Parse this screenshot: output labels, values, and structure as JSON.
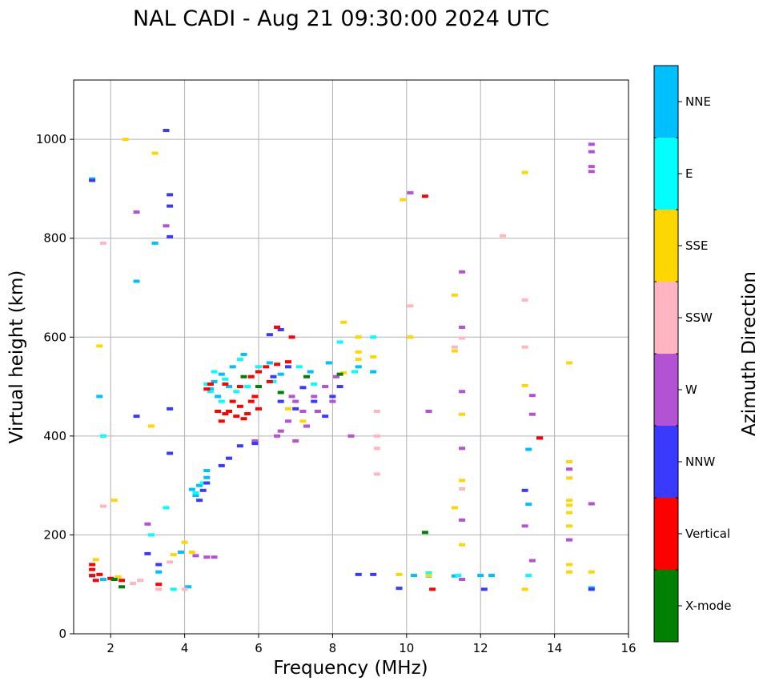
{
  "chart_data": {
    "type": "scatter",
    "title": "NAL CADI - Aug 21 09:30:00 2024 UTC",
    "xlabel": "Frequency (MHz)",
    "ylabel": "Virtual height (km)",
    "xlim": [
      1,
      16
    ],
    "ylim": [
      0,
      1120
    ],
    "xticks": [
      2,
      4,
      6,
      8,
      10,
      12,
      14,
      16
    ],
    "yticks": [
      0,
      200,
      400,
      600,
      800,
      1000
    ],
    "grid": true,
    "colorbar": {
      "label": "Azimuth Direction",
      "categories": [
        {
          "name": "NNE",
          "color": "#00bfff"
        },
        {
          "name": "E",
          "color": "#00ffff"
        },
        {
          "name": "SSE",
          "color": "#ffd700"
        },
        {
          "name": "SSW",
          "color": "#ffb6c1"
        },
        {
          "name": "W",
          "color": "#b452d4"
        },
        {
          "name": "NNW",
          "color": "#3a3aff"
        },
        {
          "name": "Vertical",
          "color": "#ff0000"
        },
        {
          "name": "X-mode",
          "color": "#008000"
        }
      ]
    },
    "series": [
      {
        "name": "NNE",
        "points": [
          [
            1.5,
            920
          ],
          [
            3.2,
            790
          ],
          [
            2.7,
            713
          ],
          [
            1.7,
            480
          ],
          [
            1.5,
            117
          ],
          [
            1.8,
            110
          ],
          [
            4.6,
            316
          ],
          [
            4.4,
            300
          ],
          [
            4.2,
            292
          ],
          [
            4.3,
            280
          ],
          [
            4.6,
            330
          ],
          [
            4.8,
            510
          ],
          [
            4.7,
            495
          ],
          [
            5.0,
            525
          ],
          [
            5.3,
            540
          ],
          [
            5.6,
            565
          ],
          [
            5.2,
            500
          ],
          [
            4.9,
            480
          ],
          [
            6.3,
            548
          ],
          [
            6.6,
            525
          ],
          [
            7.4,
            530
          ],
          [
            7.9,
            548
          ],
          [
            8.7,
            540
          ],
          [
            9.1,
            530
          ],
          [
            10.2,
            118
          ],
          [
            10.6,
            117
          ],
          [
            11.3,
            117
          ],
          [
            12.0,
            118
          ],
          [
            12.3,
            118
          ],
          [
            13.3,
            373
          ],
          [
            13.3,
            262
          ],
          [
            15.0,
            93
          ],
          [
            4.1,
            95
          ],
          [
            3.9,
            165
          ],
          [
            3.3,
            125
          ]
        ]
      },
      {
        "name": "E",
        "points": [
          [
            4.8,
            530
          ],
          [
            5.1,
            515
          ],
          [
            5.4,
            490
          ],
          [
            4.6,
            505
          ],
          [
            5.0,
            470
          ],
          [
            5.7,
            500
          ],
          [
            6.0,
            540
          ],
          [
            6.4,
            510
          ],
          [
            7.1,
            540
          ],
          [
            7.5,
            505
          ],
          [
            8.2,
            590
          ],
          [
            8.6,
            530
          ],
          [
            9.1,
            600
          ],
          [
            4.5,
            305
          ],
          [
            4.3,
            285
          ],
          [
            3.5,
            255
          ],
          [
            3.1,
            200
          ],
          [
            1.8,
            400
          ],
          [
            3.7,
            90
          ],
          [
            10.6,
            123
          ],
          [
            11.4,
            118
          ],
          [
            13.3,
            118
          ],
          [
            5.5,
            555
          ],
          [
            4.7,
            490
          ]
        ]
      },
      {
        "name": "SSE",
        "points": [
          [
            2.4,
            1000
          ],
          [
            3.2,
            972
          ],
          [
            3.1,
            420
          ],
          [
            1.7,
            582
          ],
          [
            2.1,
            270
          ],
          [
            1.6,
            150
          ],
          [
            2.2,
            115
          ],
          [
            3.7,
            160
          ],
          [
            4.0,
            185
          ],
          [
            4.2,
            165
          ],
          [
            8.3,
            630
          ],
          [
            8.7,
            600
          ],
          [
            8.7,
            570
          ],
          [
            8.7,
            555
          ],
          [
            9.1,
            560
          ],
          [
            9.9,
            878
          ],
          [
            10.1,
            600
          ],
          [
            11.3,
            685
          ],
          [
            11.3,
            572
          ],
          [
            11.5,
            444
          ],
          [
            11.5,
            310
          ],
          [
            11.3,
            255
          ],
          [
            11.5,
            180
          ],
          [
            13.2,
            933
          ],
          [
            13.2,
            502
          ],
          [
            13.2,
            90
          ],
          [
            14.4,
            548
          ],
          [
            14.4,
            348
          ],
          [
            14.4,
            315
          ],
          [
            14.4,
            270
          ],
          [
            14.4,
            260
          ],
          [
            14.4,
            245
          ],
          [
            14.4,
            218
          ],
          [
            14.4,
            140
          ],
          [
            14.4,
            125
          ],
          [
            15.0,
            125
          ],
          [
            10.6,
            118
          ],
          [
            9.8,
            120
          ],
          [
            8.3,
            528
          ],
          [
            6.8,
            455
          ],
          [
            7.2,
            430
          ]
        ]
      },
      {
        "name": "SSW",
        "points": [
          [
            1.8,
            790
          ],
          [
            1.8,
            258
          ],
          [
            12.6,
            805
          ],
          [
            13.2,
            675
          ],
          [
            13.2,
            580
          ],
          [
            11.5,
            598
          ],
          [
            11.3,
            580
          ],
          [
            9.2,
            450
          ],
          [
            9.2,
            400
          ],
          [
            9.2,
            375
          ],
          [
            9.2,
            323
          ],
          [
            10.1,
            663
          ],
          [
            11.5,
            293
          ],
          [
            14.4,
            190
          ],
          [
            3.3,
            90
          ],
          [
            4.0,
            90
          ],
          [
            2.6,
            102
          ],
          [
            2.8,
            108
          ],
          [
            3.6,
            145
          ]
        ]
      },
      {
        "name": "W",
        "points": [
          [
            2.7,
            853
          ],
          [
            3.5,
            825
          ],
          [
            10.1,
            892
          ],
          [
            15.0,
            990
          ],
          [
            15.0,
            975
          ],
          [
            15.0,
            945
          ],
          [
            15.0,
            935
          ],
          [
            11.5,
            732
          ],
          [
            11.5,
            620
          ],
          [
            11.5,
            490
          ],
          [
            11.5,
            375
          ],
          [
            11.5,
            230
          ],
          [
            11.5,
            110
          ],
          [
            10.6,
            450
          ],
          [
            13.4,
            482
          ],
          [
            13.4,
            444
          ],
          [
            13.2,
            218
          ],
          [
            13.4,
            148
          ],
          [
            14.4,
            190
          ],
          [
            14.4,
            333
          ],
          [
            15.0,
            263
          ],
          [
            3.0,
            222
          ],
          [
            4.3,
            158
          ],
          [
            4.6,
            155
          ],
          [
            4.8,
            155
          ],
          [
            7.0,
            470
          ],
          [
            7.2,
            450
          ],
          [
            7.5,
            480
          ],
          [
            7.8,
            500
          ],
          [
            8.0,
            470
          ],
          [
            6.8,
            430
          ],
          [
            6.6,
            410
          ],
          [
            7.3,
            420
          ],
          [
            7.6,
            450
          ],
          [
            8.1,
            520
          ],
          [
            6.5,
            400
          ],
          [
            7.0,
            390
          ],
          [
            6.9,
            480
          ],
          [
            5.9,
            390
          ],
          [
            8.5,
            400
          ]
        ]
      },
      {
        "name": "NNW",
        "points": [
          [
            3.5,
            1018
          ],
          [
            3.6,
            888
          ],
          [
            3.6,
            865
          ],
          [
            3.6,
            803
          ],
          [
            3.6,
            455
          ],
          [
            3.6,
            365
          ],
          [
            2.7,
            440
          ],
          [
            1.5,
            917
          ],
          [
            3.0,
            162
          ],
          [
            3.3,
            140
          ],
          [
            4.6,
            305
          ],
          [
            4.5,
            290
          ],
          [
            4.4,
            270
          ],
          [
            5.0,
            340
          ],
          [
            5.2,
            355
          ],
          [
            5.5,
            380
          ],
          [
            5.9,
            385
          ],
          [
            6.4,
            520
          ],
          [
            6.8,
            540
          ],
          [
            7.2,
            498
          ],
          [
            7.5,
            470
          ],
          [
            7.8,
            440
          ],
          [
            8.0,
            480
          ],
          [
            8.2,
            500
          ],
          [
            7.0,
            455
          ],
          [
            6.6,
            470
          ],
          [
            8.7,
            120
          ],
          [
            9.1,
            120
          ],
          [
            9.8,
            92
          ],
          [
            12.1,
            90
          ],
          [
            13.2,
            290
          ],
          [
            13.6,
            396
          ],
          [
            15.0,
            90
          ],
          [
            6.3,
            605
          ],
          [
            6.6,
            615
          ]
        ]
      },
      {
        "name": "Vertical",
        "points": [
          [
            1.5,
            140
          ],
          [
            1.5,
            130
          ],
          [
            1.5,
            118
          ],
          [
            1.6,
            108
          ],
          [
            1.7,
            120
          ],
          [
            2.0,
            112
          ],
          [
            2.3,
            108
          ],
          [
            5.2,
            450
          ],
          [
            5.4,
            440
          ],
          [
            5.5,
            460
          ],
          [
            5.6,
            435
          ],
          [
            5.8,
            470
          ],
          [
            5.1,
            445
          ],
          [
            5.9,
            480
          ],
          [
            6.0,
            455
          ],
          [
            5.3,
            470
          ],
          [
            5.0,
            430
          ],
          [
            5.7,
            445
          ],
          [
            4.9,
            450
          ],
          [
            4.7,
            505
          ],
          [
            4.6,
            495
          ],
          [
            5.1,
            505
          ],
          [
            5.5,
            500
          ],
          [
            5.8,
            520
          ],
          [
            6.0,
            530
          ],
          [
            6.2,
            540
          ],
          [
            6.5,
            545
          ],
          [
            6.8,
            550
          ],
          [
            6.3,
            510
          ],
          [
            6.9,
            600
          ],
          [
            6.5,
            620
          ],
          [
            10.5,
            885
          ],
          [
            10.7,
            90
          ],
          [
            13.6,
            396
          ],
          [
            3.3,
            100
          ]
        ]
      },
      {
        "name": "X-mode",
        "points": [
          [
            2.1,
            110
          ],
          [
            2.3,
            95
          ],
          [
            10.5,
            205
          ],
          [
            5.6,
            520
          ],
          [
            6.0,
            500
          ],
          [
            6.6,
            488
          ],
          [
            7.3,
            520
          ],
          [
            8.2,
            525
          ]
        ]
      }
    ]
  }
}
